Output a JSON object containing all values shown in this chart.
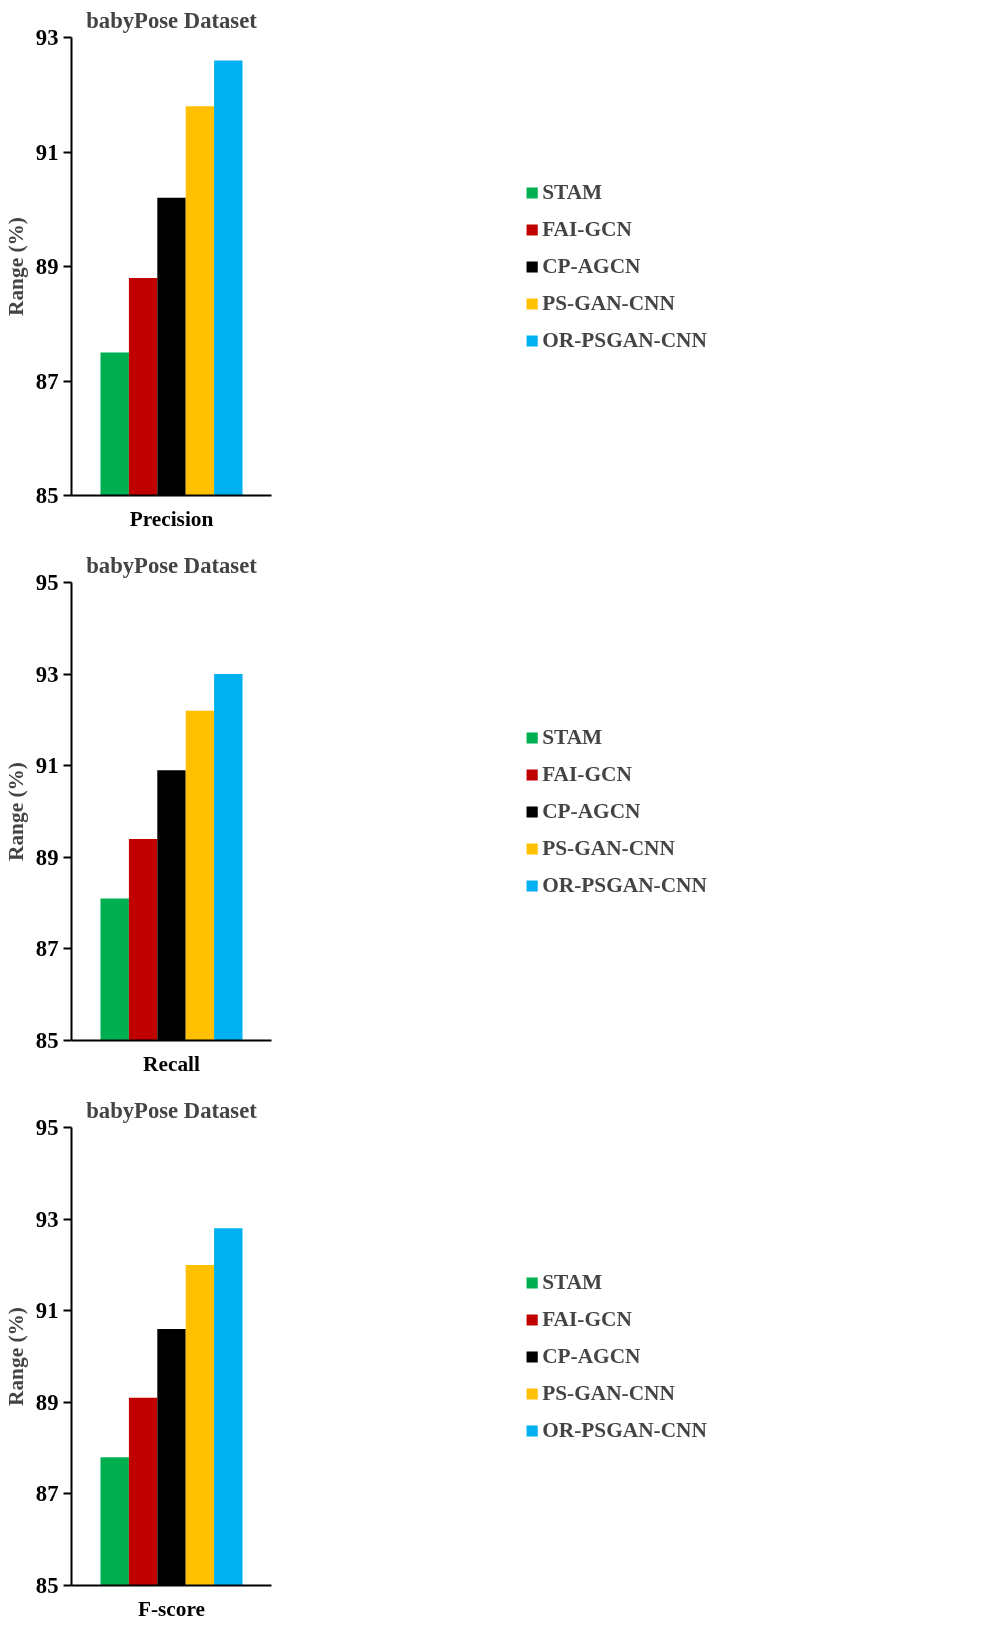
{
  "chart_data": [
    {
      "type": "bar",
      "title": "babyPose Dataset",
      "ylabel": "Range (%)",
      "categories": [
        "Precision"
      ],
      "ylim": [
        85,
        93
      ],
      "yticks": [
        85,
        87,
        89,
        91,
        93
      ],
      "legend": "right",
      "grid": false,
      "series": [
        {
          "name": "STAM",
          "color": "#00b050",
          "values": [
            87.5
          ]
        },
        {
          "name": "FAI-GCN",
          "color": "#c00000",
          "values": [
            88.8
          ]
        },
        {
          "name": "CP-AGCN",
          "color": "#000000",
          "values": [
            90.2
          ]
        },
        {
          "name": "PS-GAN-CNN",
          "color": "#ffc000",
          "values": [
            91.8
          ]
        },
        {
          "name": "OR-PSGAN-CNN",
          "color": "#00b0f0",
          "values": [
            92.6
          ]
        }
      ]
    },
    {
      "type": "bar",
      "title": "babyPose Dataset",
      "ylabel": "Range (%)",
      "categories": [
        "Recall"
      ],
      "ylim": [
        85,
        95
      ],
      "yticks": [
        85,
        87,
        89,
        91,
        93,
        95
      ],
      "legend": "right",
      "grid": false,
      "series": [
        {
          "name": "STAM",
          "color": "#00b050",
          "values": [
            88.1
          ]
        },
        {
          "name": "FAI-GCN",
          "color": "#c00000",
          "values": [
            89.4
          ]
        },
        {
          "name": "CP-AGCN",
          "color": "#000000",
          "values": [
            90.9
          ]
        },
        {
          "name": "PS-GAN-CNN",
          "color": "#ffc000",
          "values": [
            92.2
          ]
        },
        {
          "name": "OR-PSGAN-CNN",
          "color": "#00b0f0",
          "values": [
            93.0
          ]
        }
      ]
    },
    {
      "type": "bar",
      "title": "babyPose Dataset",
      "ylabel": "Range (%)",
      "categories": [
        "F-score"
      ],
      "ylim": [
        85,
        95
      ],
      "yticks": [
        85,
        87,
        89,
        91,
        93,
        95
      ],
      "legend": "right",
      "grid": false,
      "series": [
        {
          "name": "STAM",
          "color": "#00b050",
          "values": [
            87.8
          ]
        },
        {
          "name": "FAI-GCN",
          "color": "#c00000",
          "values": [
            89.1
          ]
        },
        {
          "name": "CP-AGCN",
          "color": "#000000",
          "values": [
            90.6
          ]
        },
        {
          "name": "PS-GAN-CNN",
          "color": "#ffc000",
          "values": [
            92.0
          ]
        },
        {
          "name": "OR-PSGAN-CNN",
          "color": "#00b0f0",
          "values": [
            92.8
          ]
        }
      ]
    }
  ]
}
